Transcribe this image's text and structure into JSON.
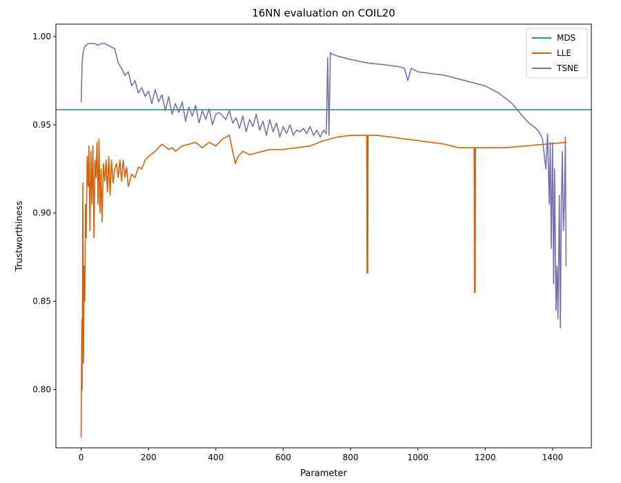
{
  "chart_data": {
    "type": "line",
    "title": "16NN evaluation on COIL20",
    "xlabel": "Parameter",
    "ylabel": "Trustworthiness",
    "xlim": [
      -75,
      1515
    ],
    "ylim": [
      0.767,
      1.007
    ],
    "xticks": [
      0,
      200,
      400,
      600,
      800,
      1000,
      1200,
      1400
    ],
    "xtick_labels": [
      "0",
      "200",
      "400",
      "600",
      "800",
      "1000",
      "1200",
      "1400"
    ],
    "yticks": [
      0.8,
      0.85,
      0.9,
      0.95,
      1.0
    ],
    "ytick_labels": [
      "0.80",
      "0.85",
      "0.90",
      "0.95",
      "1.00"
    ],
    "grid": false,
    "legend_position": "top-right",
    "series": [
      {
        "name": "MDS",
        "color": "#1b9e77",
        "x": [
          -75,
          1515
        ],
        "y": [
          0.9585,
          0.9585
        ]
      },
      {
        "name": "LLE",
        "color": "#d95f02",
        "x": [
          0,
          2,
          3,
          5,
          7,
          9,
          11,
          13,
          15,
          18,
          21,
          23,
          26,
          29,
          32,
          35,
          38,
          41,
          44,
          47,
          50,
          53,
          56,
          59,
          62,
          66,
          70,
          74,
          78,
          82,
          86,
          90,
          95,
          100,
          105,
          110,
          115,
          120,
          125,
          130,
          135,
          140,
          150,
          160,
          170,
          180,
          190,
          200,
          220,
          240,
          260,
          270,
          280,
          300,
          320,
          340,
          360,
          380,
          400,
          420,
          440,
          450,
          458,
          466,
          480,
          500,
          520,
          560,
          600,
          640,
          680,
          720,
          760,
          800,
          848,
          849,
          850,
          851,
          852,
          880,
          920,
          960,
          1000,
          1040,
          1080,
          1120,
          1160,
          1167,
          1168,
          1169,
          1170,
          1171,
          1200,
          1260,
          1320,
          1380,
          1440
        ],
        "y": [
          0.773,
          0.84,
          0.8,
          0.917,
          0.815,
          0.87,
          0.85,
          0.905,
          0.886,
          0.932,
          0.915,
          0.938,
          0.89,
          0.935,
          0.905,
          0.938,
          0.886,
          0.93,
          0.92,
          0.94,
          0.905,
          0.942,
          0.9,
          0.925,
          0.895,
          0.928,
          0.918,
          0.93,
          0.912,
          0.932,
          0.91,
          0.93,
          0.917,
          0.925,
          0.928,
          0.92,
          0.93,
          0.918,
          0.93,
          0.92,
          0.926,
          0.915,
          0.922,
          0.92,
          0.926,
          0.925,
          0.93,
          0.932,
          0.935,
          0.939,
          0.936,
          0.937,
          0.935,
          0.938,
          0.939,
          0.94,
          0.937,
          0.94,
          0.938,
          0.942,
          0.944,
          0.935,
          0.928,
          0.932,
          0.935,
          0.933,
          0.934,
          0.936,
          0.936,
          0.937,
          0.938,
          0.941,
          0.943,
          0.944,
          0.944,
          0.866,
          0.944,
          0.866,
          0.944,
          0.944,
          0.943,
          0.942,
          0.941,
          0.94,
          0.939,
          0.937,
          0.937,
          0.937,
          0.855,
          0.937,
          0.855,
          0.937,
          0.937,
          0.937,
          0.938,
          0.939,
          0.94
        ]
      },
      {
        "name": "TSNE",
        "color": "#7570b3",
        "x": [
          0,
          3,
          6,
          10,
          15,
          20,
          30,
          40,
          50,
          60,
          70,
          80,
          90,
          100,
          110,
          120,
          130,
          140,
          150,
          160,
          170,
          180,
          190,
          200,
          210,
          220,
          230,
          240,
          250,
          260,
          270,
          280,
          290,
          300,
          310,
          320,
          330,
          340,
          350,
          360,
          370,
          380,
          390,
          400,
          410,
          420,
          430,
          440,
          450,
          460,
          470,
          480,
          490,
          500,
          510,
          520,
          530,
          540,
          550,
          560,
          570,
          580,
          590,
          600,
          610,
          620,
          630,
          640,
          650,
          660,
          670,
          680,
          690,
          700,
          710,
          720,
          728,
          732,
          736,
          740,
          745,
          760,
          800,
          850,
          900,
          940,
          960,
          970,
          980,
          1000,
          1040,
          1080,
          1120,
          1160,
          1200,
          1240,
          1280,
          1310,
          1330,
          1350,
          1360,
          1370,
          1380,
          1385,
          1390,
          1393,
          1396,
          1400,
          1403,
          1406,
          1410,
          1413,
          1416,
          1420,
          1423,
          1426,
          1429,
          1432,
          1435,
          1438,
          1440
        ],
        "y": [
          0.963,
          0.985,
          0.991,
          0.994,
          0.995,
          0.996,
          0.996,
          0.996,
          0.995,
          0.996,
          0.996,
          0.995,
          0.994,
          0.993,
          0.985,
          0.982,
          0.978,
          0.98,
          0.972,
          0.975,
          0.968,
          0.971,
          0.966,
          0.969,
          0.962,
          0.97,
          0.963,
          0.967,
          0.958,
          0.966,
          0.956,
          0.962,
          0.957,
          0.963,
          0.952,
          0.96,
          0.955,
          0.961,
          0.951,
          0.958,
          0.953,
          0.959,
          0.95,
          0.956,
          0.957,
          0.955,
          0.953,
          0.958,
          0.951,
          0.954,
          0.948,
          0.955,
          0.946,
          0.953,
          0.949,
          0.956,
          0.947,
          0.952,
          0.944,
          0.953,
          0.946,
          0.951,
          0.943,
          0.949,
          0.945,
          0.95,
          0.944,
          0.947,
          0.946,
          0.948,
          0.945,
          0.949,
          0.944,
          0.947,
          0.943,
          0.947,
          0.945,
          0.988,
          0.944,
          0.991,
          0.99,
          0.989,
          0.987,
          0.985,
          0.984,
          0.983,
          0.982,
          0.975,
          0.982,
          0.98,
          0.979,
          0.978,
          0.976,
          0.974,
          0.972,
          0.968,
          0.962,
          0.955,
          0.951,
          0.948,
          0.946,
          0.942,
          0.925,
          0.945,
          0.905,
          0.94,
          0.88,
          0.94,
          0.86,
          0.925,
          0.845,
          0.87,
          0.84,
          0.91,
          0.835,
          0.905,
          0.935,
          0.89,
          0.905,
          0.943,
          0.87
        ]
      }
    ]
  }
}
